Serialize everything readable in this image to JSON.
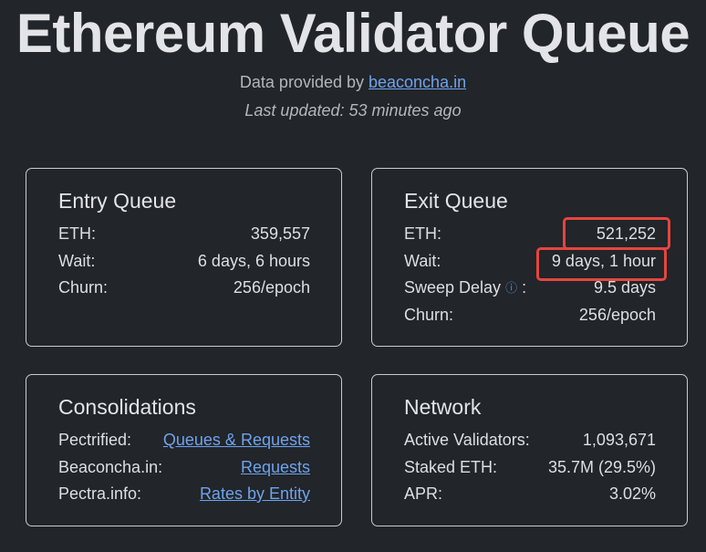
{
  "title": "Ethereum Validator Queue",
  "provided_prefix": "Data provided by ",
  "provided_link": "beaconcha.in",
  "last_updated": "Last updated: 53 minutes ago",
  "entry": {
    "title": "Entry Queue",
    "rows": [
      {
        "label": "ETH:",
        "value": "359,557"
      },
      {
        "label": "Wait:",
        "value": "6 days, 6 hours"
      },
      {
        "label": "Churn:",
        "value": "256/epoch"
      }
    ]
  },
  "exit": {
    "title": "Exit Queue",
    "rows": [
      {
        "label": "ETH:",
        "value": "521,252"
      },
      {
        "label": "Wait:",
        "value": "9 days, 1 hour"
      },
      {
        "label": "Sweep Delay",
        "value": "9.5 days"
      },
      {
        "label": "Churn:",
        "value": "256/epoch"
      }
    ],
    "info_icon": "ⓘ",
    "colon": ":"
  },
  "consolidations": {
    "title": "Consolidations",
    "rows": [
      {
        "label": "Pectrified:",
        "value": "Queues & Requests"
      },
      {
        "label": "Beaconcha.in:",
        "value": "Requests"
      },
      {
        "label": "Pectra.info:",
        "value": "Rates by Entity"
      }
    ]
  },
  "network": {
    "title": "Network",
    "rows": [
      {
        "label": "Active Validators:",
        "value": "1,093,671"
      },
      {
        "label": "Staked ETH:",
        "value": "35.7M (29.5%)"
      },
      {
        "label": "APR:",
        "value": "3.02%"
      }
    ]
  },
  "colors": {
    "background": "#222529",
    "link": "#6ea3ee",
    "highlight": "#e5453f"
  }
}
